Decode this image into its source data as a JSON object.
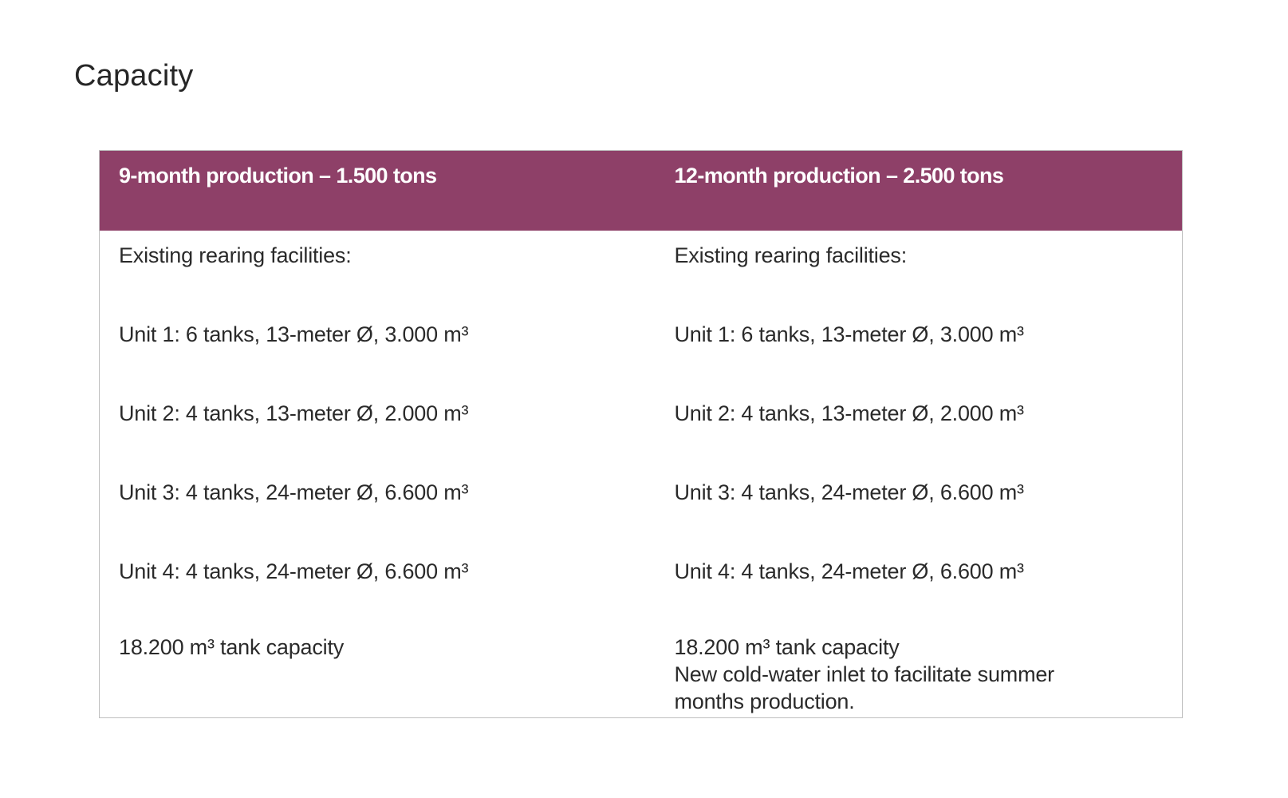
{
  "slide": {
    "title": "Capacity"
  },
  "colors": {
    "header_bg": "#8e4068",
    "header_text": "#ffffff",
    "border": "#bfbfbf"
  },
  "table": {
    "headers": [
      "9-month production – 1.500 tons",
      "12-month production – 2.500 tons"
    ],
    "rows": [
      {
        "col1": [
          "Existing rearing facilities:"
        ],
        "col2": [
          "Existing rearing facilities:"
        ]
      },
      {
        "col1": [
          "Unit  1: 6 tanks,  13-meter Ø,  3.000 m³"
        ],
        "col2": [
          "Unit  1: 6 tanks,  13-meter Ø,  3.000 m³"
        ]
      },
      {
        "col1": [
          "Unit  2: 4 tanks,  13-meter Ø,  2.000 m³"
        ],
        "col2": [
          "Unit  2: 4 tanks,  13-meter Ø,  2.000 m³"
        ]
      },
      {
        "col1": [
          "Unit  3: 4 tanks,  24-meter Ø,  6.600 m³"
        ],
        "col2": [
          "Unit  3: 4 tanks,  24-meter Ø,  6.600 m³"
        ]
      },
      {
        "col1": [
          "Unit  4: 4 tanks,  24-meter Ø,  6.600 m³"
        ],
        "col2": [
          "Unit  4: 4 tanks,  24-meter Ø,  6.600 m³"
        ]
      },
      {
        "col1": [
          "18.200 m³ tank capacity"
        ],
        "col2": [
          "18.200 m³ tank capacity",
          "New cold-water inlet to facilitate summer",
          "months production."
        ]
      }
    ]
  }
}
